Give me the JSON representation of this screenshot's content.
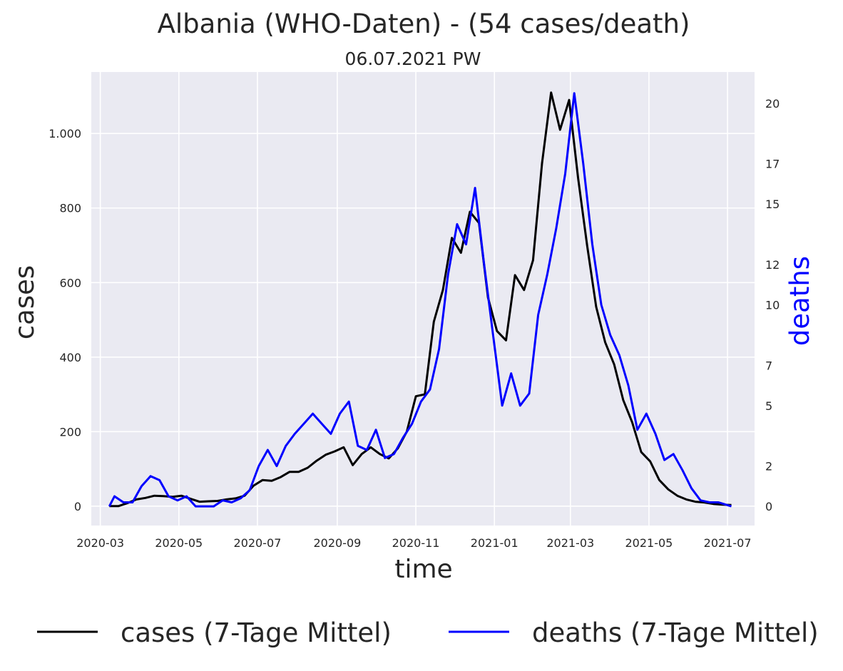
{
  "chart_data": {
    "type": "line",
    "title": "Albania (WHO-Daten) - (54 cases/death)",
    "subtitle": "06.07.2021 PW",
    "xlabel": "time",
    "ylabel_left": "cases",
    "ylabel_right": "deaths",
    "x_ticks": [
      "2020-03",
      "2020-05",
      "2020-07",
      "2020-09",
      "2020-11",
      "2021-01",
      "2021-03",
      "2021-05",
      "2021-07"
    ],
    "y_left_ticks": [
      0,
      200,
      400,
      600,
      800,
      1000
    ],
    "y_left_tick_labels": [
      "0",
      "200",
      "400",
      "600",
      "800",
      "1.000"
    ],
    "y_right_ticks": [
      0,
      2,
      5,
      7,
      10,
      12,
      15,
      17,
      20
    ],
    "ylim_left": [
      -52,
      1165
    ],
    "ylim_right": [
      -0.95,
      21.55
    ],
    "xlim": [
      "2020-02-23",
      "2021-07-22"
    ],
    "grid": true,
    "legend_position": "bottom",
    "colors": {
      "cases": "#000000",
      "deaths": "#0000ff",
      "background": "#eaeaf2",
      "grid": "#ffffff"
    },
    "series": [
      {
        "name": "cases (7-Tage Mittel)",
        "axis": "left",
        "color": "#000000",
        "points": [
          [
            "2020-03-08",
            0
          ],
          [
            "2020-03-15",
            0
          ],
          [
            "2020-03-22",
            8
          ],
          [
            "2020-03-29",
            18
          ],
          [
            "2020-04-05",
            22
          ],
          [
            "2020-04-12",
            28
          ],
          [
            "2020-04-19",
            27
          ],
          [
            "2020-04-26",
            25
          ],
          [
            "2020-05-03",
            28
          ],
          [
            "2020-05-10",
            20
          ],
          [
            "2020-05-17",
            12
          ],
          [
            "2020-05-24",
            13
          ],
          [
            "2020-05-31",
            14
          ],
          [
            "2020-06-07",
            18
          ],
          [
            "2020-06-14",
            21
          ],
          [
            "2020-06-21",
            28
          ],
          [
            "2020-06-28",
            55
          ],
          [
            "2020-07-05",
            70
          ],
          [
            "2020-07-12",
            68
          ],
          [
            "2020-07-19",
            78
          ],
          [
            "2020-07-26",
            92
          ],
          [
            "2020-08-02",
            92
          ],
          [
            "2020-08-09",
            103
          ],
          [
            "2020-08-16",
            122
          ],
          [
            "2020-08-23",
            138
          ],
          [
            "2020-08-30",
            147
          ],
          [
            "2020-09-06",
            158
          ],
          [
            "2020-09-13",
            110
          ],
          [
            "2020-09-20",
            140
          ],
          [
            "2020-09-27",
            158
          ],
          [
            "2020-10-04",
            140
          ],
          [
            "2020-10-11",
            128
          ],
          [
            "2020-10-18",
            155
          ],
          [
            "2020-10-25",
            200
          ],
          [
            "2020-11-01",
            295
          ],
          [
            "2020-11-08",
            300
          ],
          [
            "2020-11-15",
            495
          ],
          [
            "2020-11-22",
            580
          ],
          [
            "2020-11-29",
            720
          ],
          [
            "2020-12-06",
            680
          ],
          [
            "2020-12-13",
            790
          ],
          [
            "2020-12-20",
            760
          ],
          [
            "2020-12-27",
            560
          ],
          [
            "2021-01-03",
            470
          ],
          [
            "2021-01-10",
            445
          ],
          [
            "2021-01-17",
            620
          ],
          [
            "2021-01-24",
            580
          ],
          [
            "2021-01-31",
            660
          ],
          [
            "2021-02-07",
            920
          ],
          [
            "2021-02-14",
            1110
          ],
          [
            "2021-02-21",
            1010
          ],
          [
            "2021-02-28",
            1090
          ],
          [
            "2021-03-07",
            880
          ],
          [
            "2021-03-14",
            700
          ],
          [
            "2021-03-21",
            535
          ],
          [
            "2021-03-28",
            440
          ],
          [
            "2021-04-04",
            380
          ],
          [
            "2021-04-11",
            285
          ],
          [
            "2021-04-18",
            225
          ],
          [
            "2021-04-25",
            145
          ],
          [
            "2021-05-02",
            120
          ],
          [
            "2021-05-09",
            70
          ],
          [
            "2021-05-16",
            45
          ],
          [
            "2021-05-23",
            28
          ],
          [
            "2021-05-30",
            18
          ],
          [
            "2021-06-06",
            12
          ],
          [
            "2021-06-13",
            10
          ],
          [
            "2021-06-20",
            6
          ],
          [
            "2021-06-27",
            4
          ],
          [
            "2021-07-04",
            3
          ]
        ]
      },
      {
        "name": "deaths (7-Tage Mittel)",
        "axis": "right",
        "color": "#0000ff",
        "points": [
          [
            "2020-03-08",
            0
          ],
          [
            "2020-03-12",
            0.5
          ],
          [
            "2020-03-19",
            0.2
          ],
          [
            "2020-03-26",
            0.2
          ],
          [
            "2020-04-02",
            1.0
          ],
          [
            "2020-04-09",
            1.5
          ],
          [
            "2020-04-16",
            1.3
          ],
          [
            "2020-04-23",
            0.5
          ],
          [
            "2020-04-30",
            0.3
          ],
          [
            "2020-05-07",
            0.5
          ],
          [
            "2020-05-14",
            0
          ],
          [
            "2020-05-21",
            0
          ],
          [
            "2020-05-28",
            0
          ],
          [
            "2020-06-04",
            0.3
          ],
          [
            "2020-06-11",
            0.2
          ],
          [
            "2020-06-18",
            0.4
          ],
          [
            "2020-06-25",
            0.8
          ],
          [
            "2020-07-02",
            2.0
          ],
          [
            "2020-07-09",
            2.8
          ],
          [
            "2020-07-16",
            2.0
          ],
          [
            "2020-07-23",
            3.0
          ],
          [
            "2020-07-30",
            3.6
          ],
          [
            "2020-08-06",
            4.1
          ],
          [
            "2020-08-13",
            4.6
          ],
          [
            "2020-08-20",
            4.1
          ],
          [
            "2020-08-27",
            3.6
          ],
          [
            "2020-09-03",
            4.6
          ],
          [
            "2020-09-10",
            5.2
          ],
          [
            "2020-09-17",
            3.0
          ],
          [
            "2020-09-24",
            2.8
          ],
          [
            "2020-10-01",
            3.8
          ],
          [
            "2020-10-08",
            2.4
          ],
          [
            "2020-10-15",
            2.6
          ],
          [
            "2020-10-22",
            3.4
          ],
          [
            "2020-10-29",
            4.1
          ],
          [
            "2020-11-05",
            5.2
          ],
          [
            "2020-11-12",
            5.8
          ],
          [
            "2020-11-19",
            7.8
          ],
          [
            "2020-11-26",
            11.5
          ],
          [
            "2020-12-03",
            14.0
          ],
          [
            "2020-12-10",
            13.0
          ],
          [
            "2020-12-17",
            15.8
          ],
          [
            "2020-12-24",
            12.0
          ],
          [
            "2020-12-31",
            8.5
          ],
          [
            "2021-01-07",
            5.0
          ],
          [
            "2021-01-14",
            6.6
          ],
          [
            "2021-01-21",
            5.0
          ],
          [
            "2021-01-28",
            5.6
          ],
          [
            "2021-02-04",
            9.5
          ],
          [
            "2021-02-11",
            11.5
          ],
          [
            "2021-02-18",
            13.8
          ],
          [
            "2021-02-25",
            16.5
          ],
          [
            "2021-03-04",
            20.5
          ],
          [
            "2021-03-11",
            17.0
          ],
          [
            "2021-03-18",
            13.0
          ],
          [
            "2021-03-25",
            10.0
          ],
          [
            "2021-04-01",
            8.5
          ],
          [
            "2021-04-08",
            7.5
          ],
          [
            "2021-04-15",
            6.0
          ],
          [
            "2021-04-22",
            3.8
          ],
          [
            "2021-04-29",
            4.6
          ],
          [
            "2021-05-06",
            3.6
          ],
          [
            "2021-05-13",
            2.3
          ],
          [
            "2021-05-20",
            2.6
          ],
          [
            "2021-05-27",
            1.8
          ],
          [
            "2021-06-03",
            0.9
          ],
          [
            "2021-06-10",
            0.3
          ],
          [
            "2021-06-17",
            0.2
          ],
          [
            "2021-06-24",
            0.2
          ],
          [
            "2021-07-04",
            0
          ]
        ]
      }
    ]
  }
}
